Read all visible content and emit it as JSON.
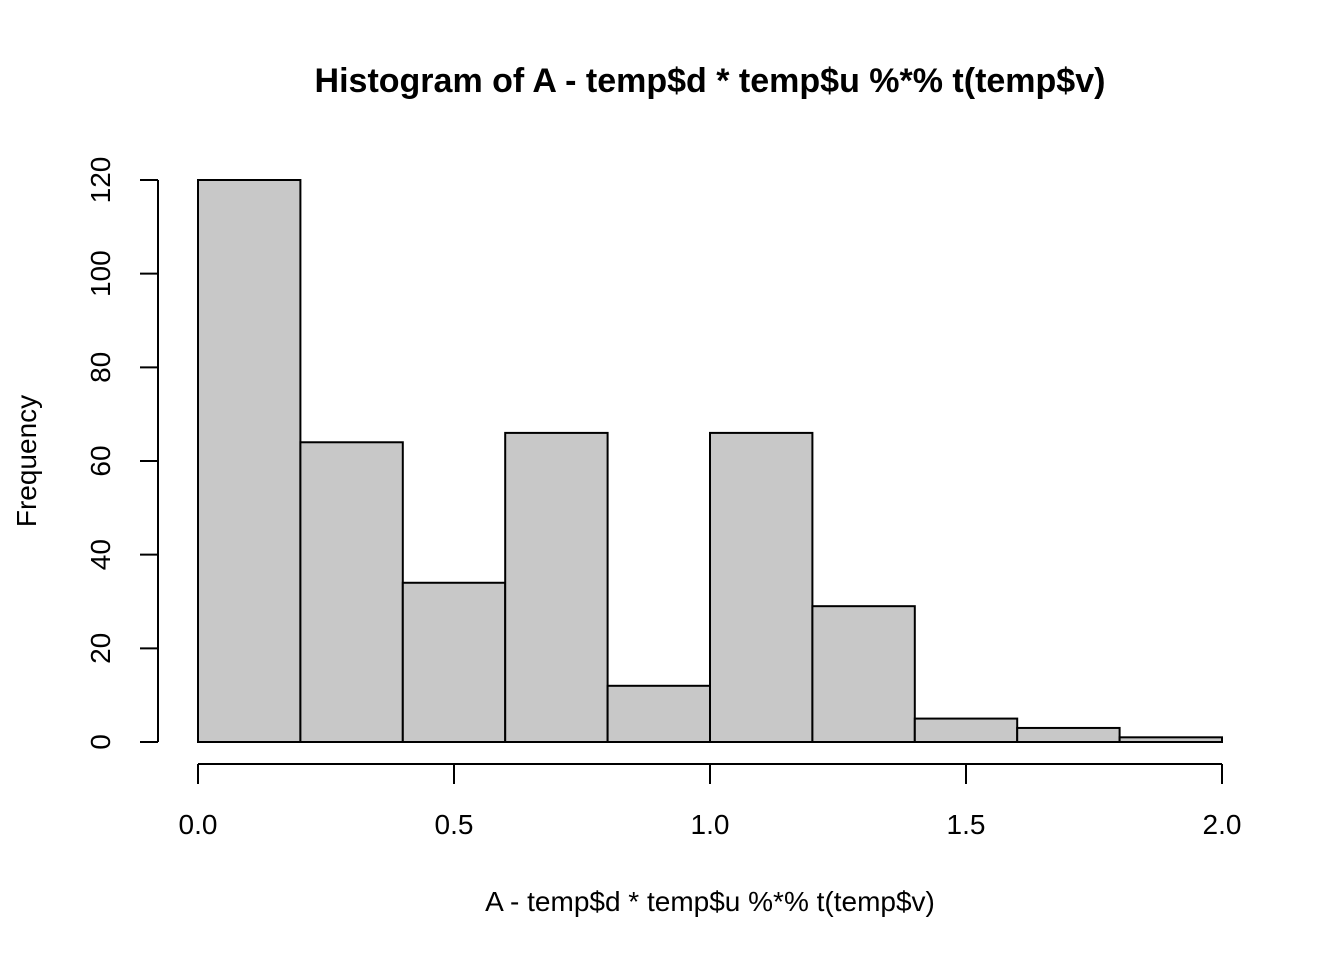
{
  "chart_data": {
    "type": "bar",
    "title": "Histogram of A - temp$d * temp$u %*% t(temp$v)",
    "xlabel": "A - temp$d * temp$u %*% t(temp$v)",
    "ylabel": "Frequency",
    "bins": [
      {
        "start": 0.0,
        "end": 0.2,
        "count": 120
      },
      {
        "start": 0.2,
        "end": 0.4,
        "count": 64
      },
      {
        "start": 0.4,
        "end": 0.6,
        "count": 34
      },
      {
        "start": 0.6,
        "end": 0.8,
        "count": 66
      },
      {
        "start": 0.8,
        "end": 1.0,
        "count": 12
      },
      {
        "start": 1.0,
        "end": 1.2,
        "count": 66
      },
      {
        "start": 1.2,
        "end": 1.4,
        "count": 29
      },
      {
        "start": 1.4,
        "end": 1.6,
        "count": 5
      },
      {
        "start": 1.6,
        "end": 1.8,
        "count": 3
      },
      {
        "start": 1.8,
        "end": 2.0,
        "count": 1
      }
    ],
    "xlim": [
      0.0,
      2.0
    ],
    "ylim": [
      0,
      120
    ],
    "x_ticks": [
      0.0,
      0.5,
      1.0,
      1.5,
      2.0
    ],
    "x_tick_labels": [
      "0.0",
      "0.5",
      "1.0",
      "1.5",
      "2.0"
    ],
    "y_ticks": [
      0,
      20,
      40,
      60,
      80,
      100,
      120
    ],
    "y_tick_labels": [
      "0",
      "20",
      "40",
      "60",
      "80",
      "100",
      "120"
    ],
    "bar_color": "#c8c8c8",
    "border_color": "#000000",
    "grid": false
  }
}
